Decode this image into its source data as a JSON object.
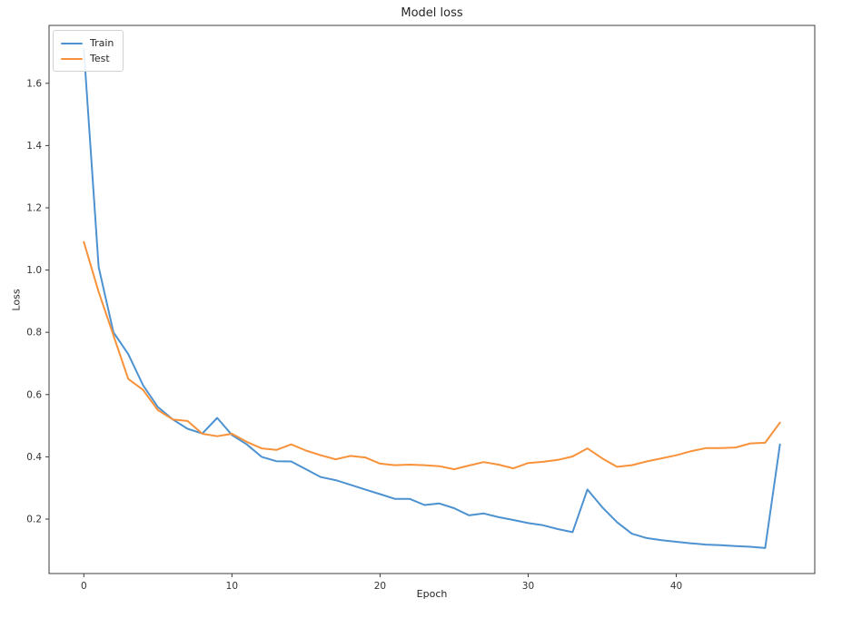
{
  "chart_data": {
    "type": "line",
    "title": "Model loss",
    "xlabel": "Epoch",
    "ylabel": "Loss",
    "x": [
      0,
      1,
      2,
      3,
      4,
      5,
      6,
      7,
      8,
      9,
      10,
      11,
      12,
      13,
      14,
      15,
      16,
      17,
      18,
      19,
      20,
      21,
      22,
      23,
      24,
      25,
      26,
      27,
      28,
      29,
      30,
      31,
      32,
      33,
      34,
      35,
      36,
      37,
      38,
      39,
      40,
      41,
      42,
      43,
      44,
      45,
      46,
      47
    ],
    "series": [
      {
        "name": "Train",
        "color": "#4d92d0",
        "values": [
          1.71,
          1.01,
          0.8,
          0.73,
          0.63,
          0.56,
          0.52,
          0.49,
          0.475,
          0.525,
          0.47,
          0.44,
          0.4,
          0.386,
          0.385,
          0.36,
          0.335,
          0.325,
          0.31,
          0.295,
          0.28,
          0.265,
          0.265,
          0.245,
          0.25,
          0.235,
          0.212,
          0.218,
          0.206,
          0.197,
          0.187,
          0.18,
          0.168,
          0.158,
          0.295,
          0.238,
          0.19,
          0.153,
          0.139,
          0.132,
          0.127,
          0.122,
          0.118,
          0.116,
          0.113,
          0.111,
          0.107,
          0.44
        ]
      },
      {
        "name": "Test",
        "color": "#f8923a",
        "values": [
          1.09,
          0.93,
          0.79,
          0.65,
          0.615,
          0.55,
          0.52,
          0.515,
          0.474,
          0.466,
          0.474,
          0.448,
          0.427,
          0.422,
          0.44,
          0.42,
          0.405,
          0.392,
          0.403,
          0.398,
          0.378,
          0.373,
          0.375,
          0.373,
          0.37,
          0.36,
          0.372,
          0.383,
          0.375,
          0.363,
          0.38,
          0.384,
          0.39,
          0.401,
          0.427,
          0.395,
          0.368,
          0.373,
          0.385,
          0.395,
          0.405,
          0.418,
          0.428,
          0.428,
          0.43,
          0.443,
          0.445,
          0.51
        ]
      }
    ],
    "xticks": [
      "0",
      "10",
      "20",
      "30",
      "40"
    ],
    "yticks": [
      "0.2",
      "0.4",
      "0.6",
      "0.8",
      "1.0",
      "1.2",
      "1.4",
      "1.6"
    ],
    "xlim": [
      -2.35,
      49.35
    ],
    "ylim": [
      0.025,
      1.786
    ],
    "grid": false,
    "legend_position": "upper left",
    "axis_color": "#3c3c3c",
    "tick_text_color": "#333333"
  }
}
